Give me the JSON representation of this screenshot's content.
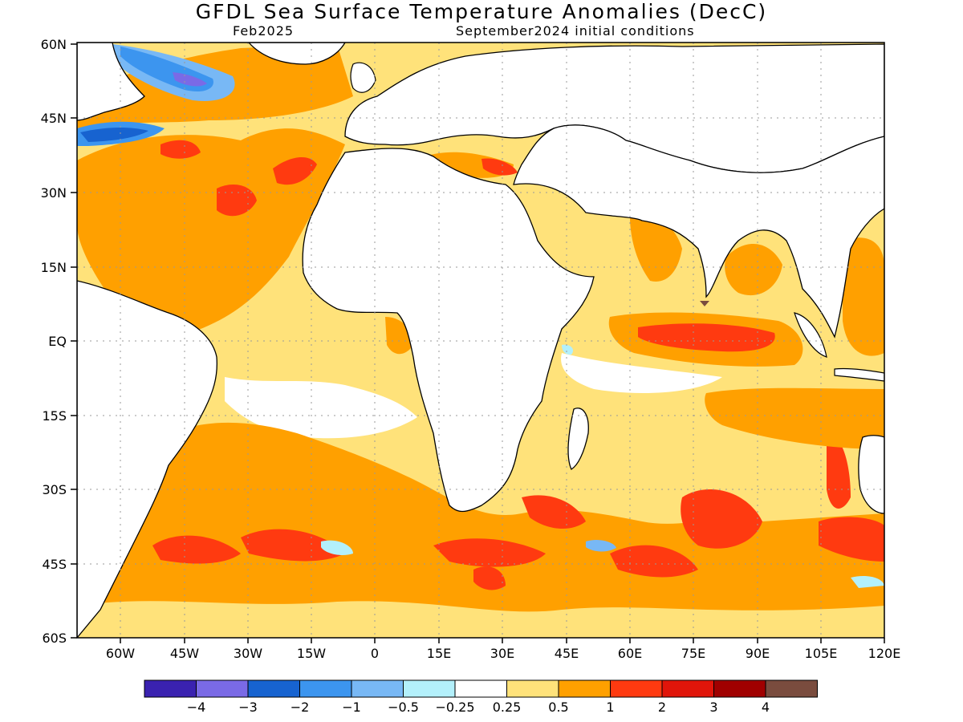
{
  "title": "GFDL Sea Surface Temperature Anomalies (DecC)",
  "subtitle_left": "Feb2025",
  "subtitle_right": "September2024 initial conditions",
  "lat_labels": [
    "60N",
    "45N",
    "30N",
    "15N",
    "EQ",
    "15S",
    "30S",
    "45S",
    "60S"
  ],
  "lon_labels": [
    "60W",
    "45W",
    "30W",
    "15W",
    "0",
    "15E",
    "30E",
    "45E",
    "60E",
    "75E",
    "90E",
    "105E",
    "120E"
  ],
  "colorbar": {
    "colors": [
      "#3a22b0",
      "#7a6ae6",
      "#1763d0",
      "#3c95ef",
      "#78b8f5",
      "#b3f0fb",
      "#ffffff",
      "#ffe27a",
      "#ffa000",
      "#ff3a10",
      "#e0150a",
      "#a00000",
      "#7a4c3e"
    ],
    "labels": [
      "−4",
      "−3",
      "−2",
      "−1",
      "−0.5",
      "−0.25",
      "0.25",
      "0.5",
      "1",
      "2",
      "3",
      "4"
    ]
  },
  "legend_fill_colors": {
    "light_yellow": "#ffe27a",
    "orange": "#ffa000",
    "red_orange": "#ff3a10",
    "light_cyan": "#b3f0fb",
    "light_blue": "#78b8f5",
    "blue": "#1763d0",
    "purple": "#7a6ae6",
    "brown": "#7a4c3e"
  }
}
